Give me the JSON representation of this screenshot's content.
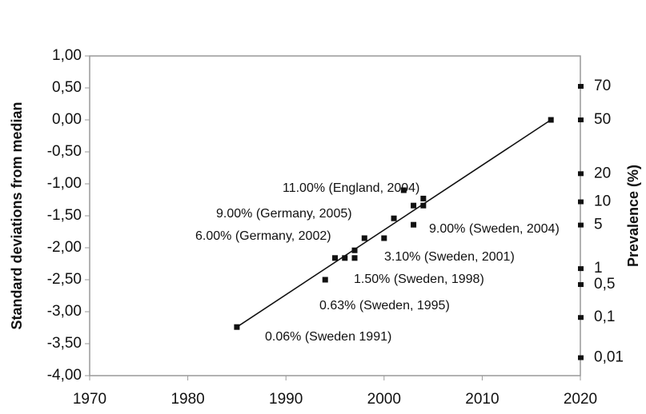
{
  "chart_data": {
    "type": "scatter",
    "y_label": "Standard deviations from median",
    "y2_label": "Prevalence (%)",
    "color": "#111111",
    "x": [
      1985,
      1994,
      1995,
      1996,
      1997,
      1997,
      1998,
      2000,
      2001,
      2002,
      2003,
      2003,
      2004,
      2004,
      2017
    ],
    "values": [
      -3.24,
      -2.5,
      -2.16,
      -2.16,
      -2.16,
      -2.04,
      -1.85,
      -1.85,
      -1.54,
      -1.1,
      -1.34,
      -1.64,
      -1.23,
      -1.34,
      0
    ],
    "trendline": {
      "x": [
        1985,
        2017
      ],
      "y": [
        -3.24,
        0
      ]
    },
    "xlim": [
      1970,
      2020
    ],
    "xticks": [
      1970,
      1980,
      1990,
      2000,
      2010,
      2020
    ],
    "ylim": [
      -4,
      1
    ],
    "yticks": [
      {
        "value": 1,
        "label": "1,00"
      },
      {
        "value": 0.5,
        "label": "0,50"
      },
      {
        "value": 0,
        "label": "0,00"
      },
      {
        "value": -0.5,
        "label": "-0,50"
      },
      {
        "value": -1,
        "label": "-1,00"
      },
      {
        "value": -1.5,
        "label": "-1,50"
      },
      {
        "value": -2,
        "label": "-2,00"
      },
      {
        "value": -2.5,
        "label": "-2,50"
      },
      {
        "value": -3,
        "label": "-3,00"
      },
      {
        "value": -3.5,
        "label": "-3,50"
      },
      {
        "value": -4,
        "label": "-4,00"
      }
    ],
    "y2scale": "probit",
    "y2lim": [
      0.00317,
      84.13
    ],
    "y2ticks": [
      70,
      50,
      20,
      10,
      5,
      1,
      {
        "value": 0.5,
        "label": "0,5"
      },
      {
        "value": 0.1,
        "label": "0,1"
      },
      {
        "value": 0.01,
        "label": "0,01"
      }
    ],
    "annotations": [
      "11.00% (England, 2004)",
      "9.00% (Germany, 2005)",
      "6.00% (Germany, 2002)",
      "9.00% (Sweden, 2004)",
      "3.10% (Sweden, 2001)",
      "1.50% (Sweden, 1998)",
      "0.63% (Sweden, 1995)",
      "0.06% (Sweden 1991)"
    ]
  }
}
